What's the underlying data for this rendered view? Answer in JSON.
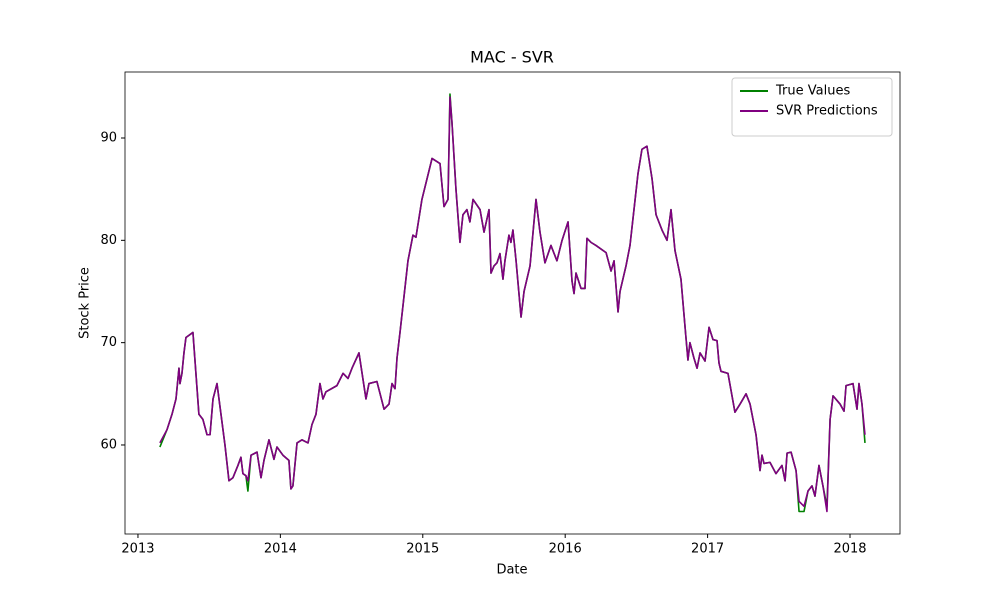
{
  "chart_data": {
    "type": "line",
    "title": "MAC - SVR",
    "xlabel": "Date",
    "ylabel": "Stock Price",
    "x": [
      2013.154,
      2013.204,
      2013.239,
      2013.267,
      2013.288,
      2013.295,
      2013.309,
      2013.323,
      2013.337,
      2013.386,
      2013.428,
      2013.456,
      2013.485,
      2013.506,
      2013.527,
      2013.555,
      2013.583,
      2013.611,
      2013.639,
      2013.667,
      2013.702,
      2013.723,
      2013.737,
      2013.758,
      2013.772,
      2013.794,
      2013.836,
      2013.864,
      2013.885,
      2013.92,
      2013.955,
      2013.976,
      2014.018,
      2014.06,
      2014.074,
      2014.088,
      2014.117,
      2014.152,
      2014.194,
      2014.222,
      2014.25,
      2014.278,
      2014.299,
      2014.32,
      2014.397,
      2014.44,
      2014.475,
      2014.503,
      2014.552,
      2014.601,
      2014.622,
      2014.678,
      2014.728,
      2014.763,
      2014.784,
      2014.805,
      2014.819,
      2014.84,
      2014.868,
      2014.896,
      2014.931,
      2014.952,
      2014.994,
      2015.065,
      2015.121,
      2015.149,
      2015.177,
      2015.191,
      2015.205,
      2015.233,
      2015.261,
      2015.282,
      2015.31,
      2015.331,
      2015.353,
      2015.402,
      2015.43,
      2015.465,
      2015.479,
      2015.5,
      2015.521,
      2015.542,
      2015.563,
      2015.577,
      2015.605,
      2015.619,
      2015.633,
      2015.655,
      2015.69,
      2015.711,
      2015.753,
      2015.795,
      2015.823,
      2015.858,
      2015.9,
      2015.942,
      2015.978,
      2016.02,
      2016.048,
      2016.062,
      2016.076,
      2016.111,
      2016.139,
      2016.153,
      2016.181,
      2016.216,
      2016.287,
      2016.322,
      2016.343,
      2016.371,
      2016.385,
      2016.427,
      2016.455,
      2016.483,
      2016.511,
      2016.539,
      2016.574,
      2016.61,
      2016.638,
      2016.68,
      2016.715,
      2016.743,
      2016.771,
      2016.813,
      2016.848,
      2016.862,
      2016.876,
      2016.904,
      2016.926,
      2016.947,
      2016.982,
      2017.01,
      2017.038,
      2017.066,
      2017.08,
      2017.094,
      2017.143,
      2017.192,
      2017.228,
      2017.27,
      2017.298,
      2017.34,
      2017.368,
      2017.382,
      2017.396,
      2017.438,
      2017.48,
      2017.522,
      2017.544,
      2017.558,
      2017.586,
      2017.621,
      2017.642,
      2017.677,
      2017.705,
      2017.733,
      2017.754,
      2017.782,
      2017.81,
      2017.838,
      2017.86,
      2017.881,
      2017.93,
      2017.958,
      2017.972,
      2018.021,
      2018.049,
      2018.063,
      2018.084,
      2018.105
    ],
    "series": [
      {
        "name": "True Values",
        "color": "#008000",
        "values": [
          59.8,
          61.5,
          63,
          64.5,
          67.5,
          66,
          67,
          69,
          70.5,
          71,
          63,
          62.5,
          61,
          61,
          64.5,
          66,
          63,
          60,
          56.5,
          56.8,
          58,
          58.8,
          57.2,
          57,
          55.5,
          59,
          59.3,
          56.8,
          58.5,
          60.5,
          58.6,
          59.8,
          59,
          58.5,
          55.7,
          56,
          60.2,
          60.5,
          60.2,
          62,
          63,
          66,
          64.5,
          65.2,
          65.8,
          67,
          66.5,
          67.5,
          69,
          64.5,
          66,
          66.2,
          63.5,
          64,
          66,
          65.5,
          68.5,
          71,
          74.5,
          78,
          80.5,
          80.3,
          84,
          88,
          87.5,
          83.3,
          84,
          94.3,
          91.5,
          85,
          79.8,
          82.5,
          83,
          81.8,
          84,
          83,
          80.8,
          83,
          76.8,
          77.5,
          77.8,
          78.7,
          76.2,
          78,
          80.5,
          79.8,
          81,
          78,
          72.5,
          75,
          77.5,
          84,
          80.8,
          77.8,
          79.5,
          78,
          80,
          81.8,
          76,
          74.8,
          76.8,
          75.3,
          75.3,
          80.2,
          79.8,
          79.5,
          78.8,
          77,
          78,
          73,
          75,
          77.5,
          79.5,
          83,
          86.5,
          88.9,
          89.2,
          86,
          82.5,
          81,
          80,
          83,
          79,
          76.2,
          70.5,
          68.3,
          70,
          68.5,
          67.5,
          69,
          68.2,
          71.5,
          70.3,
          70.2,
          68,
          67.2,
          67,
          63.2,
          64,
          65,
          64,
          61,
          57.5,
          59,
          58.2,
          58.3,
          57.2,
          58,
          56.5,
          59.2,
          59.3,
          57.5,
          53.5,
          53.5,
          55.5,
          56,
          55,
          58,
          56,
          54,
          62.5,
          64.8,
          64,
          63.3,
          65.8,
          66,
          63.5,
          66,
          64,
          60.2
        ]
      },
      {
        "name": "SVR Predictions",
        "color": "#800080",
        "values": [
          60.2,
          61.5,
          63,
          64.5,
          67.5,
          66,
          67,
          69,
          70.5,
          71,
          63,
          62.5,
          61,
          61,
          64.5,
          66,
          63,
          60,
          56.5,
          56.8,
          58,
          58.8,
          57.2,
          57,
          56.5,
          59,
          59.3,
          56.8,
          58.5,
          60.5,
          58.6,
          59.8,
          59,
          58.5,
          55.7,
          56,
          60.2,
          60.5,
          60.2,
          62,
          63,
          66,
          64.5,
          65.2,
          65.8,
          67,
          66.5,
          67.5,
          69,
          64.5,
          66,
          66.2,
          63.5,
          64,
          66,
          65.5,
          68.5,
          71,
          74.5,
          78,
          80.5,
          80.3,
          84,
          88,
          87.5,
          83.3,
          84,
          94,
          91.5,
          85,
          79.8,
          82.5,
          83,
          81.8,
          84,
          83,
          80.8,
          83,
          76.8,
          77.5,
          77.8,
          78.7,
          76.2,
          78,
          80.5,
          79.8,
          81,
          78,
          72.5,
          75,
          77.5,
          84,
          80.8,
          77.8,
          79.5,
          78,
          80,
          81.8,
          76,
          74.8,
          76.8,
          75.3,
          75.3,
          80.2,
          79.8,
          79.5,
          78.8,
          77,
          78,
          73,
          75,
          77.5,
          79.5,
          83,
          86.5,
          88.9,
          89.2,
          86,
          82.5,
          81,
          80,
          83,
          79,
          76.2,
          70.5,
          68.3,
          70,
          68.5,
          67.5,
          69,
          68.2,
          71.5,
          70.3,
          70.2,
          68,
          67.2,
          67,
          63.2,
          64,
          65,
          64,
          61,
          57.5,
          59,
          58.2,
          58.3,
          57.2,
          58,
          56.5,
          59.2,
          59.3,
          57.5,
          54.5,
          54,
          55.5,
          56,
          55,
          58,
          56,
          53.5,
          62.5,
          64.8,
          64,
          63.3,
          65.8,
          66,
          63.5,
          66,
          64,
          61
        ]
      }
    ],
    "xlim": [
      2012.909,
      2018.351
    ],
    "xticks": [
      2013,
      2014,
      2015,
      2016,
      2017,
      2018
    ],
    "ylim": [
      51.3,
      96.45
    ],
    "yticks": [
      60,
      70,
      80,
      90
    ],
    "legend": "upper right",
    "grid": false
  }
}
